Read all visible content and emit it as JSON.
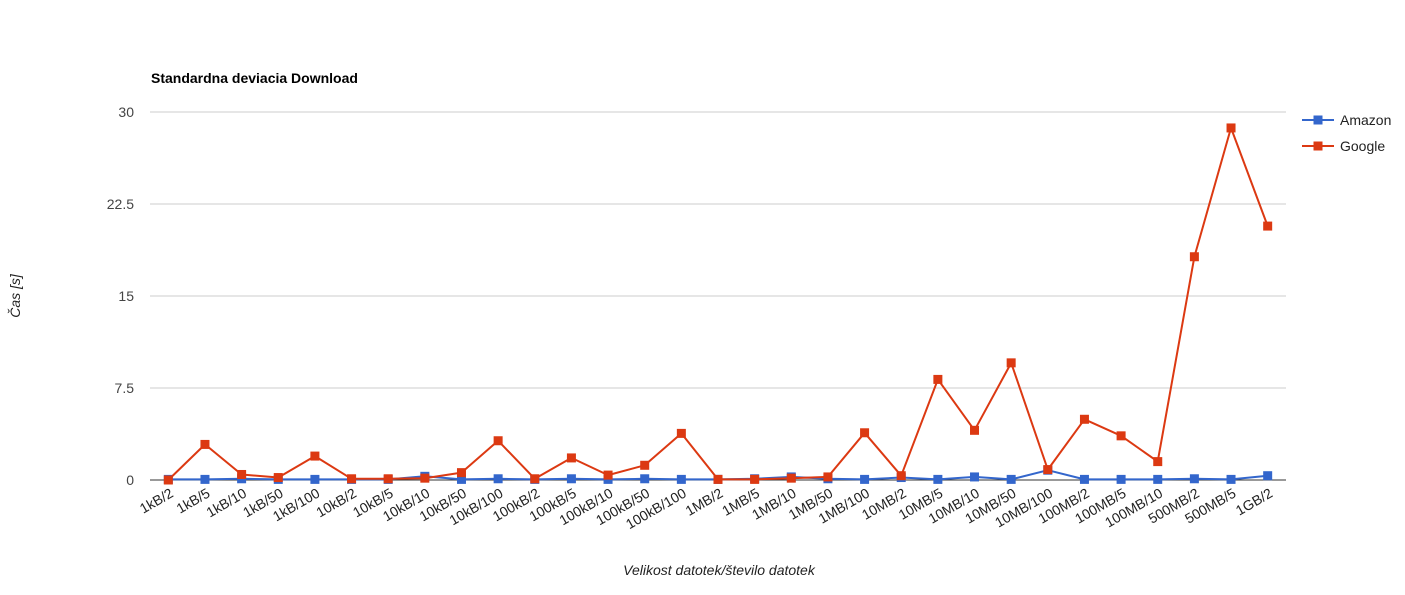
{
  "chart_data": {
    "type": "line",
    "title": "Standardna deviacia Download",
    "xlabel": "Velikost datotek/število datotek",
    "ylabel": "Čas [s]",
    "ylim": [
      0,
      30
    ],
    "yticks": [
      "0",
      "7.5",
      "15",
      "22.5",
      "30"
    ],
    "ytick_values": [
      0,
      7.5,
      15,
      22.5,
      30
    ],
    "grid": true,
    "legend_position": "right",
    "categories": [
      "1kB/2",
      "1kB/5",
      "1kB/10",
      "1kB/50",
      "1kB/100",
      "10kB/2",
      "10kB/5",
      "10kB/10",
      "10kB/50",
      "10kB/100",
      "100kB/2",
      "100kB/5",
      "100kB/10",
      "100kB/50",
      "100kB/100",
      "1MB/2",
      "1MB/5",
      "1MB/10",
      "1MB/50",
      "1MB/100",
      "10MB/2",
      "10MB/5",
      "10MB/10",
      "10MB/50",
      "10MB/100",
      "100MB/2",
      "100MB/5",
      "100MB/10",
      "500MB/2",
      "500MB/5",
      "1GB/2"
    ],
    "series": [
      {
        "name": "Amazon",
        "color": "#3366cc",
        "values": [
          0.05,
          0.05,
          0.1,
          0.05,
          0.05,
          0.05,
          0.05,
          0.3,
          0.05,
          0.1,
          0.05,
          0.1,
          0.05,
          0.1,
          0.05,
          0.05,
          0.1,
          0.25,
          0.1,
          0.05,
          0.2,
          0.05,
          0.25,
          0.05,
          0.8,
          0.05,
          0.05,
          0.05,
          0.1,
          0.05,
          0.35
        ]
      },
      {
        "name": "Google",
        "color": "#dc3912",
        "values": [
          0.0,
          2.9,
          0.45,
          0.2,
          1.95,
          0.1,
          0.1,
          0.15,
          0.6,
          3.2,
          0.1,
          1.8,
          0.4,
          1.2,
          3.8,
          0.05,
          0.05,
          0.15,
          0.25,
          3.85,
          0.35,
          8.2,
          4.05,
          9.55,
          0.85,
          4.95,
          3.6,
          1.5,
          18.2,
          28.7,
          20.7
        ]
      }
    ]
  }
}
